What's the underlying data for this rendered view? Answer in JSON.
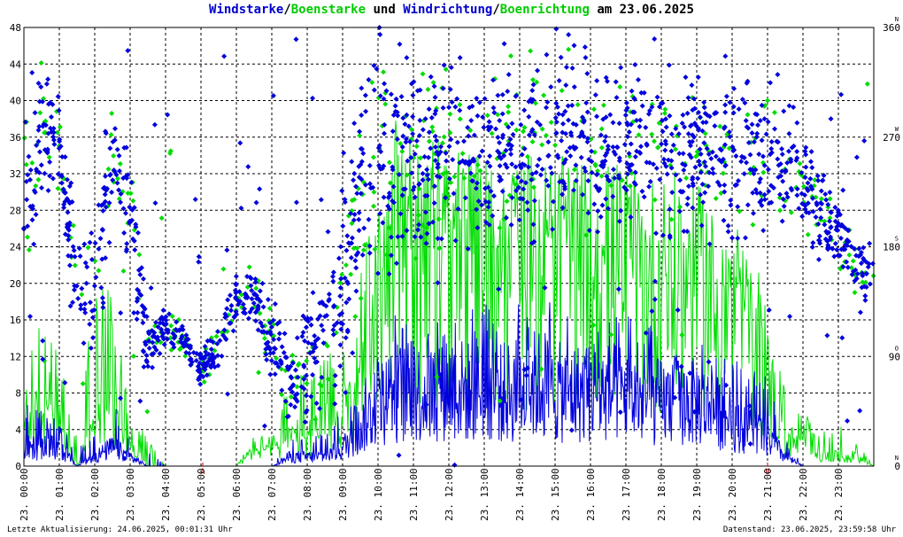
{
  "title": {
    "part1": "Windstarke",
    "sep1": "/",
    "part2": "Boenstarke",
    "mid": " und ",
    "part3": "Windrichtung",
    "sep2": "/",
    "part4": "Boenrichtung",
    "tail": " am 23.06.2025"
  },
  "footer": {
    "left": "Letzte Aktualisierung: 24.06.2025, 00:01:31 Uhr",
    "right": "Datenstand: 23.06.2025, 23:59:58 Uhr"
  },
  "colors": {
    "wind": "#0000dd",
    "gust": "#00dd00",
    "grid": "#000000",
    "marker": "#cc0000"
  },
  "chart_data": {
    "type": "line",
    "title": "Windstarke/Boenstarke und Windrichtung/Boenrichtung am 23.06.2025",
    "x_tick_labels": [
      "23. 00:00",
      "23. 01:00",
      "23. 02:00",
      "23. 03:00",
      "23. 04:00",
      "23. 05:00",
      "23. 06:00",
      "23. 07:00",
      "23. 08:00",
      "23. 09:00",
      "23. 10:00",
      "23. 11:00",
      "23. 12:00",
      "23. 13:00",
      "23. 14:00",
      "23. 15:00",
      "23. 16:00",
      "23. 17:00",
      "23. 18:00",
      "23. 19:00",
      "23. 20:00",
      "23. 21:00",
      "23. 22:00",
      "23. 23:00"
    ],
    "x_range_hours": [
      0,
      24
    ],
    "ylim_left": [
      0,
      48
    ],
    "y_left_ticks": [
      0,
      4,
      8,
      12,
      16,
      20,
      24,
      28,
      32,
      36,
      40,
      44,
      48
    ],
    "ylim_right": [
      0,
      360
    ],
    "y_right_ticks": [
      {
        "value": 0,
        "label": "0",
        "compass": "N"
      },
      {
        "value": 90,
        "label": "90",
        "compass": "O"
      },
      {
        "value": 180,
        "label": "180",
        "compass": "S"
      },
      {
        "value": 270,
        "label": "270",
        "compass": "W"
      },
      {
        "value": 360,
        "label": "360",
        "compass": "N"
      }
    ],
    "grid": true,
    "bottom_markers": [
      {
        "hour": 5.05,
        "label": "A"
      },
      {
        "hour": 21.0,
        "label": "U"
      }
    ],
    "series": [
      {
        "name": "Windstarke",
        "kind": "line",
        "axis": "left",
        "hours": [
          0,
          0.5,
          1,
          1.5,
          2,
          2.5,
          3,
          3.5,
          4,
          4.5,
          5,
          5.5,
          6,
          6.5,
          7,
          7.5,
          8,
          8.5,
          9,
          9.5,
          10,
          10.5,
          11,
          11.5,
          12,
          12.5,
          13,
          13.5,
          14,
          14.5,
          15,
          15.5,
          16,
          16.5,
          17,
          17.5,
          18,
          18.5,
          19,
          19.5,
          20,
          20.5,
          21,
          21.5,
          22,
          22.5,
          23,
          23.5,
          24
        ],
        "envelope_max": [
          7,
          6,
          5,
          2,
          4,
          7,
          4,
          2,
          0,
          0,
          0,
          0,
          0,
          0,
          0,
          3,
          3,
          4,
          6,
          9,
          14,
          17,
          16,
          16,
          18,
          17,
          19,
          17,
          18,
          18,
          19,
          16,
          17,
          16,
          17,
          16,
          16,
          15,
          15,
          14,
          12,
          11,
          10,
          3,
          0,
          0,
          0,
          0,
          0
        ],
        "typical": [
          2,
          2,
          2,
          0,
          1,
          2,
          1,
          0,
          0,
          0,
          0,
          0,
          0,
          0,
          0,
          1,
          1,
          1,
          2,
          4,
          7,
          8,
          8,
          8,
          9,
          8,
          9,
          8,
          8,
          9,
          8,
          8,
          8,
          8,
          8,
          7,
          7,
          7,
          7,
          6,
          5,
          4,
          3,
          1,
          0,
          0,
          0,
          0,
          0
        ]
      },
      {
        "name": "Boenstarke",
        "kind": "line",
        "axis": "left",
        "hours": [
          0,
          0.5,
          1,
          1.5,
          2,
          2.5,
          3,
          3.5,
          4,
          4.5,
          5,
          5.5,
          6,
          6.5,
          7,
          7.5,
          8,
          8.5,
          9,
          9.5,
          10,
          10.5,
          11,
          11.5,
          12,
          12.5,
          13,
          13.5,
          14,
          14.5,
          15,
          15.5,
          16,
          16.5,
          17,
          17.5,
          18,
          18.5,
          19,
          19.5,
          20,
          20.5,
          21,
          21.5,
          22,
          22.5,
          23,
          23.5,
          24
        ],
        "envelope_max": [
          18,
          16,
          12,
          3,
          20,
          20,
          6,
          3,
          0,
          0,
          0,
          0,
          0,
          2,
          3,
          10,
          10,
          12,
          15,
          25,
          37,
          38,
          36,
          36,
          36,
          35,
          34,
          33,
          34,
          34,
          34,
          33,
          33,
          34,
          32,
          32,
          31,
          32,
          31,
          29,
          27,
          24,
          19,
          8,
          6,
          4,
          5,
          3,
          0
        ],
        "typical": [
          5,
          5,
          4,
          0,
          4,
          6,
          2,
          0,
          0,
          0,
          0,
          0,
          0,
          2,
          2,
          3,
          3,
          4,
          5,
          10,
          18,
          20,
          20,
          20,
          21,
          20,
          21,
          20,
          20,
          21,
          20,
          20,
          20,
          20,
          20,
          19,
          19,
          19,
          18,
          17,
          15,
          13,
          9,
          3,
          2,
          1,
          1,
          1,
          0
        ]
      },
      {
        "name": "Windrichtung",
        "kind": "scatter",
        "axis": "right",
        "hours": [
          0,
          0.5,
          1,
          1.5,
          2,
          2.5,
          3,
          3.5,
          4,
          4.5,
          5,
          5.5,
          6,
          6.5,
          7,
          7.5,
          8,
          8.5,
          9,
          9.5,
          10,
          10.5,
          11,
          11.5,
          12,
          12.5,
          13,
          13.5,
          14,
          14.5,
          15,
          15.5,
          16,
          16.5,
          17,
          17.5,
          18,
          18.5,
          19,
          19.5,
          20,
          20.5,
          21,
          21.5,
          22,
          22.5,
          23,
          23.5,
          24
        ],
        "center_deg": [
          220,
          275,
          260,
          150,
          140,
          255,
          200,
          100,
          115,
          105,
          80,
          100,
          135,
          140,
          100,
          80,
          90,
          110,
          150,
          230,
          260,
          270,
          255,
          260,
          255,
          265,
          250,
          255,
          260,
          270,
          265,
          275,
          265,
          260,
          265,
          270,
          255,
          250,
          260,
          255,
          250,
          255,
          265,
          245,
          230,
          210,
          190,
          160,
          150
        ],
        "spread_deg": [
          70,
          50,
          40,
          40,
          60,
          40,
          70,
          30,
          15,
          15,
          15,
          15,
          15,
          20,
          35,
          40,
          40,
          50,
          80,
          90,
          90,
          80,
          70,
          70,
          60,
          60,
          60,
          60,
          60,
          60,
          60,
          60,
          60,
          60,
          60,
          60,
          60,
          60,
          60,
          60,
          60,
          60,
          60,
          50,
          40,
          35,
          30,
          25,
          25
        ]
      },
      {
        "name": "Boenrichtung",
        "kind": "scatter",
        "axis": "right",
        "hours": [
          0,
          0.5,
          1,
          1.5,
          2,
          2.5,
          3,
          3.5,
          4,
          4.5,
          5,
          5.5,
          6,
          6.5,
          7,
          7.5,
          8,
          8.5,
          9,
          9.5,
          10,
          10.5,
          11,
          11.5,
          12,
          12.5,
          13,
          13.5,
          14,
          14.5,
          15,
          15.5,
          16,
          16.5,
          17,
          17.5,
          18,
          18.5,
          19,
          19.5,
          20,
          20.5,
          21,
          21.5,
          22,
          22.5,
          23,
          23.5,
          24
        ],
        "center_deg": [
          220,
          275,
          260,
          150,
          140,
          255,
          200,
          100,
          115,
          105,
          80,
          100,
          135,
          140,
          100,
          80,
          90,
          110,
          150,
          230,
          260,
          270,
          255,
          260,
          255,
          265,
          250,
          255,
          260,
          270,
          265,
          275,
          265,
          260,
          265,
          270,
          255,
          250,
          260,
          255,
          250,
          255,
          265,
          245,
          230,
          210,
          190,
          160,
          150
        ],
        "spread_deg": [
          60,
          45,
          35,
          35,
          55,
          35,
          60,
          25,
          15,
          15,
          15,
          15,
          15,
          20,
          30,
          35,
          35,
          45,
          70,
          80,
          80,
          70,
          60,
          60,
          55,
          55,
          55,
          55,
          55,
          55,
          55,
          55,
          55,
          55,
          55,
          55,
          55,
          55,
          55,
          55,
          55,
          55,
          55,
          45,
          35,
          30,
          25,
          20,
          20
        ]
      }
    ]
  }
}
